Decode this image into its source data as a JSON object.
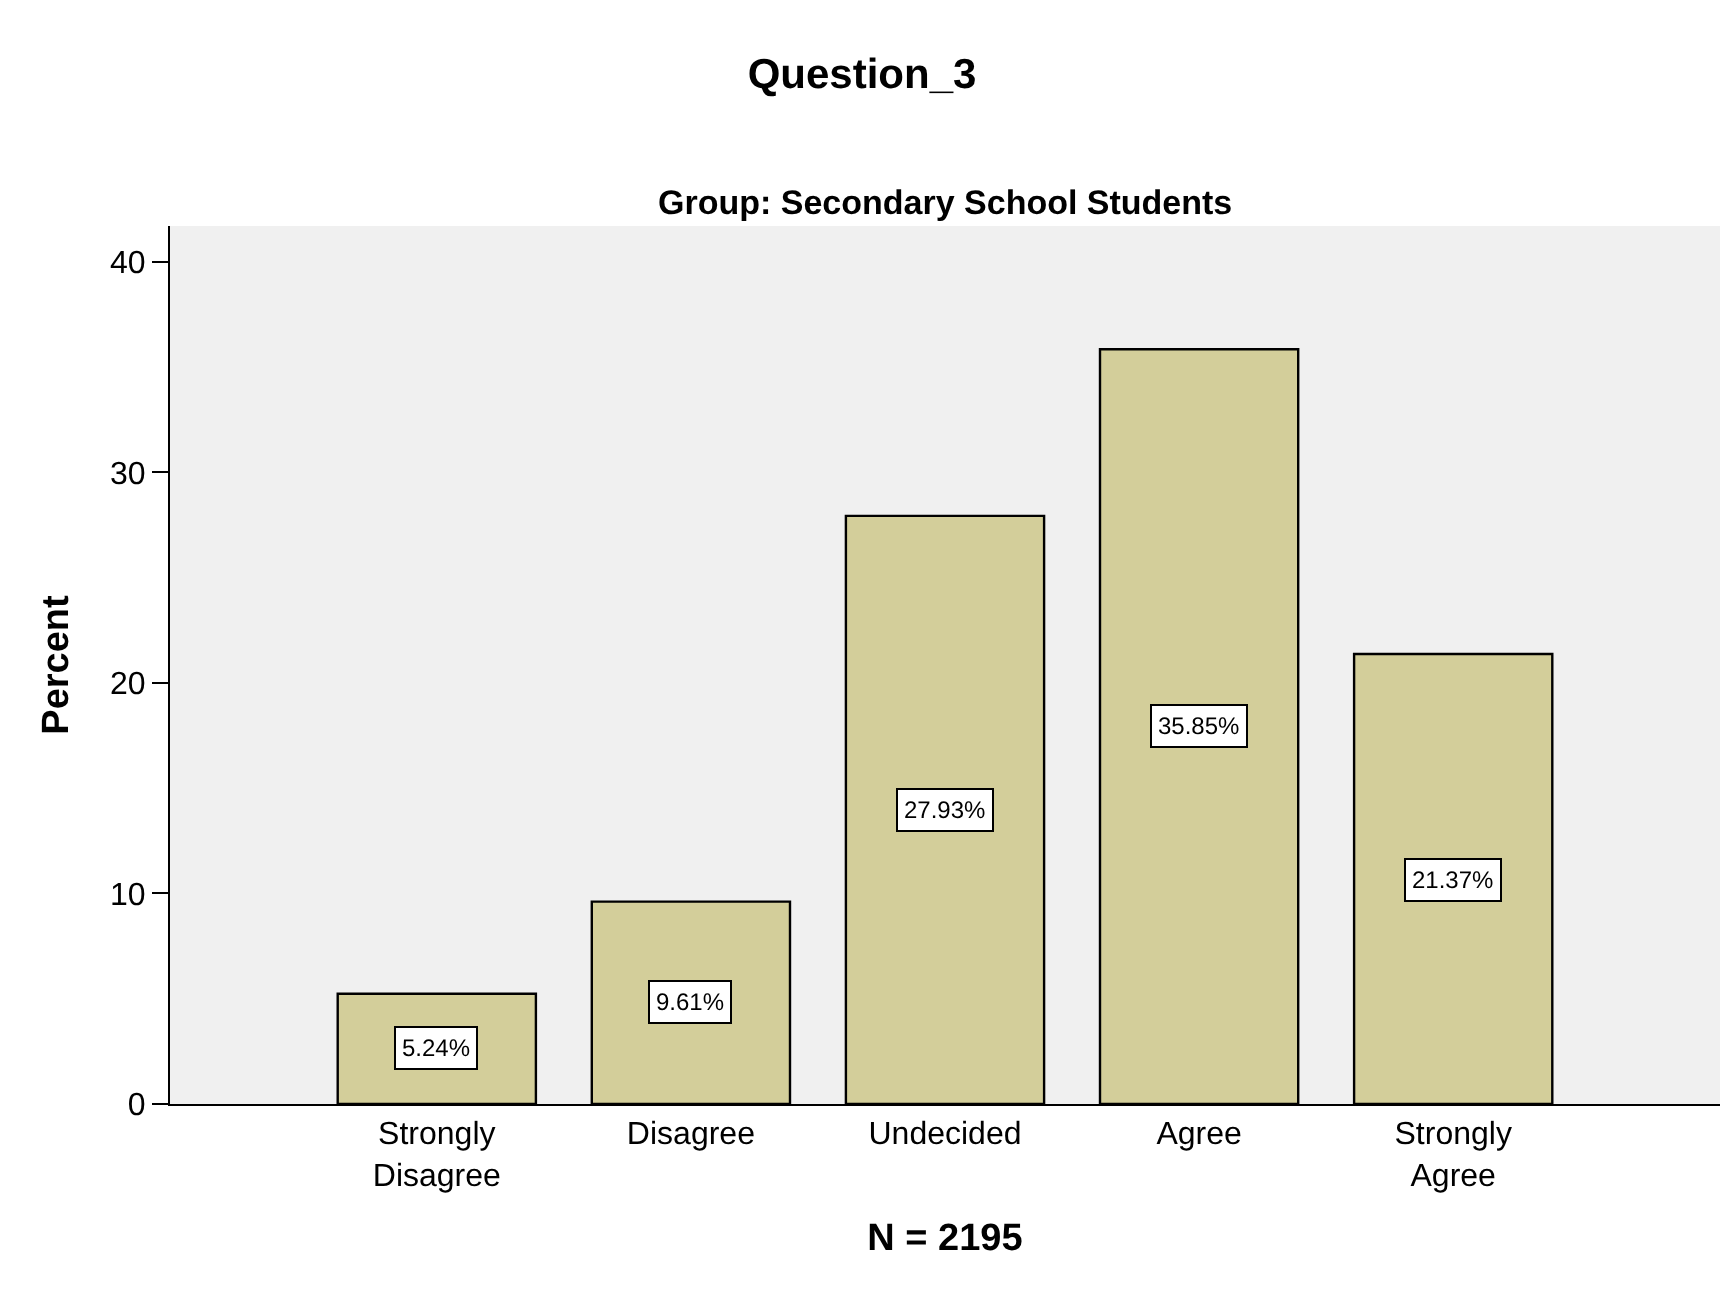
{
  "chart_data": {
    "type": "bar",
    "title": "Question_3",
    "subtitle": "Group: Secondary School Students",
    "xlabel": "N = 2195",
    "ylabel": "Percent",
    "categories": [
      "Strongly Disagree",
      "Disagree",
      "Undecided",
      "Agree",
      "Strongly Agree"
    ],
    "values": [
      5.24,
      9.61,
      27.93,
      35.85,
      21.37
    ],
    "value_labels": [
      "5.24%",
      "9.61%",
      "27.93%",
      "35.85%",
      "21.37%"
    ],
    "color": "#d3ce9a",
    "ylim": [
      0,
      41.7
    ],
    "yticks": [
      0,
      10,
      20,
      30,
      40
    ],
    "grid": false,
    "legend": false
  }
}
